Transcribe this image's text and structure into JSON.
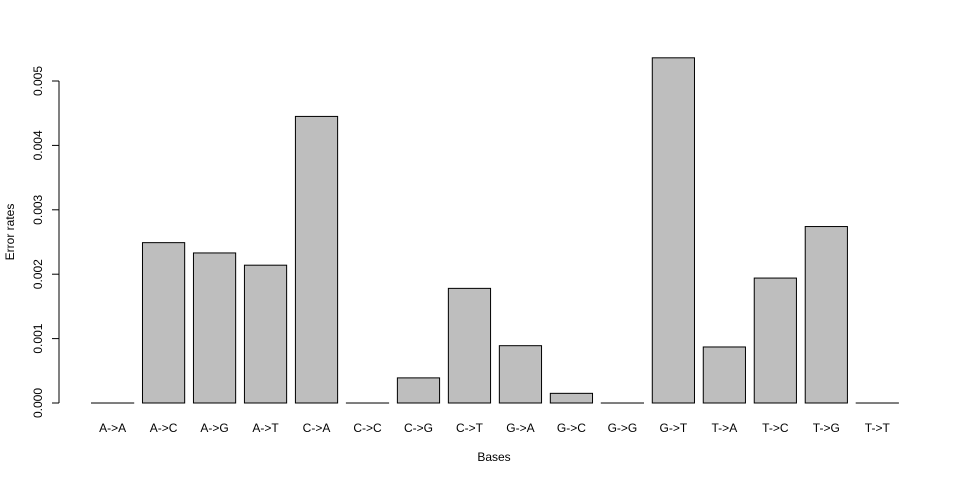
{
  "chart_data": {
    "type": "bar",
    "categories": [
      "A->A",
      "A->C",
      "A->G",
      "A->T",
      "C->A",
      "C->C",
      "C->G",
      "C->T",
      "G->A",
      "G->C",
      "G->G",
      "G->T",
      "T->A",
      "T->C",
      "T->G",
      "T->T"
    ],
    "values": [
      0.0,
      0.00249,
      0.00233,
      0.00214,
      0.00445,
      0.0,
      0.00039,
      0.00178,
      0.00089,
      0.00015,
      0.0,
      0.00536,
      0.00087,
      0.00194,
      0.00274,
      0.0
    ],
    "title": "",
    "xlabel": "Bases",
    "ylabel": "Error rates",
    "ylim": [
      0,
      0.005
    ],
    "yticks": [
      "0.000",
      "0.001",
      "0.002",
      "0.003",
      "0.004",
      "0.005"
    ],
    "bar_color": "#bebebe",
    "border_color": "#000000",
    "grid": false
  }
}
